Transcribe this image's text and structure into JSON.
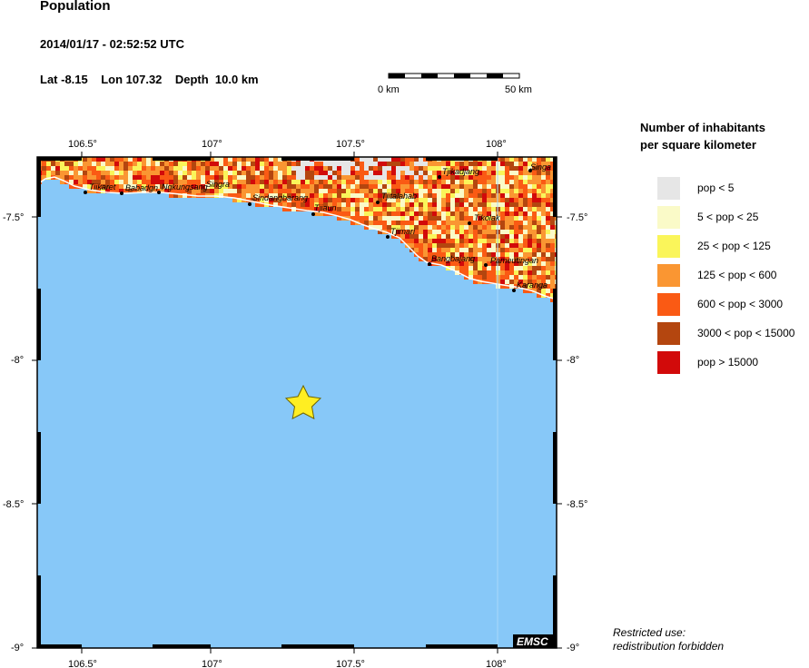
{
  "header": {
    "title": "Population",
    "datetime": "2014/01/17 - 02:52:52 UTC",
    "lat": "Lat -8.15",
    "lon": "Lon 107.32",
    "depth": "Depth  10.0 km"
  },
  "scale_bar": {
    "start_label": "0 km",
    "end_label": "50 km"
  },
  "map": {
    "lon_ticks": [
      "106.5°",
      "107°",
      "107.5°",
      "108°"
    ],
    "lat_ticks": [
      "-7.5°",
      "-8°",
      "-8.5°",
      "-9°"
    ],
    "watermark": "EMSC",
    "colors": {
      "sea": "#87c8f8",
      "land_mid": "#f0962a",
      "frame": "#000000"
    },
    "epicenter": {
      "lat": -8.15,
      "lon": 107.32,
      "marker": "star-icon",
      "color": "#ffee22"
    },
    "towns": [
      {
        "name": "Tiikaret"
      },
      {
        "name": "Babadgn"
      },
      {
        "name": "Ngkungsang"
      },
      {
        "name": "Singra"
      },
      {
        "name": "Sindangbarang"
      },
      {
        "name": "Tjiaun"
      },
      {
        "name": "Tjitalahab"
      },
      {
        "name": "Tjikadjang"
      },
      {
        "name": "Singa"
      },
      {
        "name": "Tjimari"
      },
      {
        "name": "Tikolak"
      },
      {
        "name": "Bangbajang"
      },
      {
        "name": "Pameutingan"
      },
      {
        "name": "Karanga"
      }
    ]
  },
  "legend": {
    "title_line1": "Number of inhabitants",
    "title_line2": "per square kilometer",
    "items": [
      {
        "label": "pop < 5",
        "color": "#e6e6e6"
      },
      {
        "label": "5 < pop < 25",
        "color": "#fafac8"
      },
      {
        "label": "25 < pop < 125",
        "color": "#faf55a"
      },
      {
        "label": "125 < pop < 600",
        "color": "#fa9632"
      },
      {
        "label": "600 < pop < 3000",
        "color": "#fa5a14"
      },
      {
        "label": "3000 < pop < 15000",
        "color": "#b4460f"
      },
      {
        "label": "pop > 15000",
        "color": "#d20a0a"
      }
    ]
  },
  "footer": {
    "line1": "Restricted use:",
    "line2": "redistribution forbidden"
  }
}
